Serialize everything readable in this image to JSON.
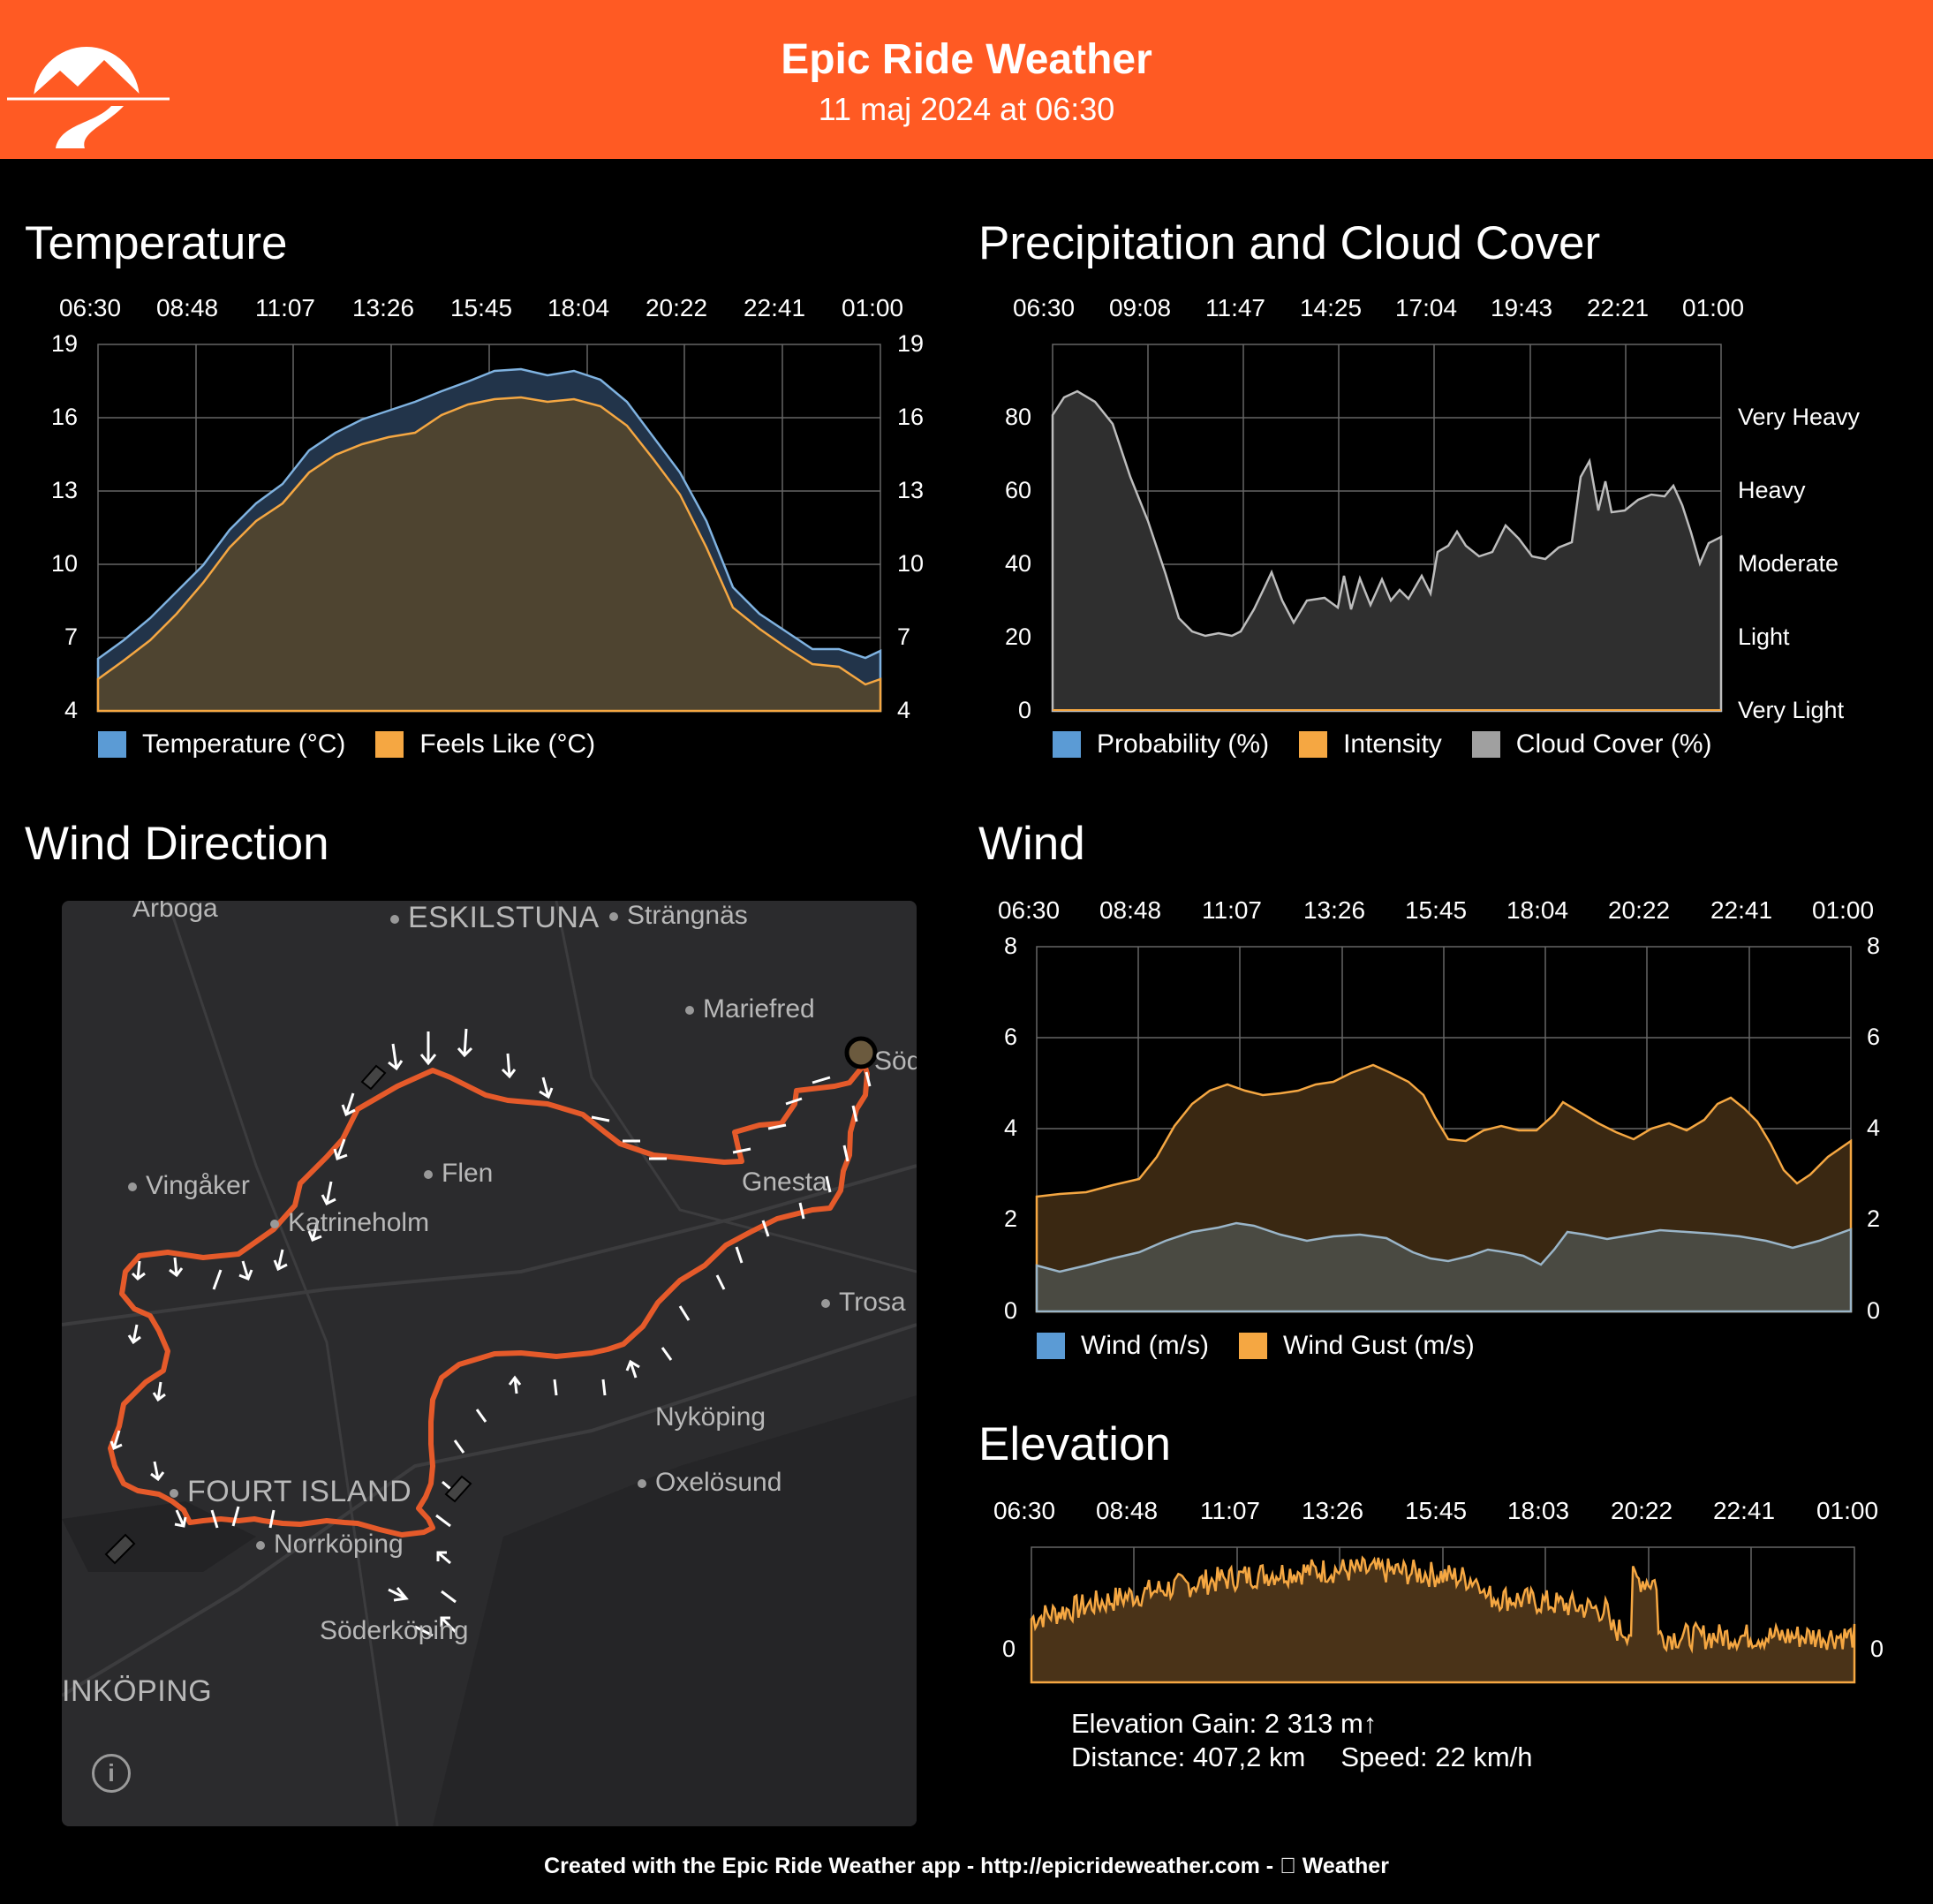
{
  "header": {
    "title": "Epic Ride Weather",
    "subtitle": "11 maj 2024 at 06:30",
    "accent": "#ff5a23"
  },
  "temperature": {
    "section_title": "Temperature",
    "x_ticks": [
      "06:30",
      "08:48",
      "11:07",
      "13:26",
      "15:45",
      "18:04",
      "20:22",
      "22:41",
      "01:00"
    ],
    "y_ticks": [
      "19",
      "16",
      "13",
      "10",
      "7",
      "4"
    ],
    "legend": [
      {
        "label": "Temperature (°C)",
        "color": "#5b9bd5"
      },
      {
        "label": "Feels Like (°C)",
        "color": "#f5a742"
      }
    ]
  },
  "precip": {
    "section_title": "Precipitation and Cloud Cover",
    "x_ticks": [
      "06:30",
      "09:08",
      "11:47",
      "14:25",
      "17:04",
      "19:43",
      "22:21",
      "01:00"
    ],
    "y_ticks": [
      "80",
      "60",
      "40",
      "20",
      "0"
    ],
    "y_right": [
      "Very Heavy",
      "Heavy",
      "Moderate",
      "Light",
      "Very Light"
    ],
    "legend": [
      {
        "label": "Probability (%)",
        "color": "#5b9bd5"
      },
      {
        "label": "Intensity",
        "color": "#f5a742"
      },
      {
        "label": "Cloud Cover (%)",
        "color": "#a0a0a0"
      }
    ]
  },
  "wind_direction": {
    "section_title": "Wind Direction",
    "map_labels": {
      "arboga": "Arboga",
      "eskilstuna": "ESKILSTUNA",
      "strangnas": "Strängnäs",
      "mariefred": "Mariefred",
      "sodertalje": "Söde",
      "vingaker": "Vingåker",
      "flen": "Flen",
      "gnesta": "Gnesta",
      "katrineholm": "Katrineholm",
      "trosa": "Trosa",
      "nykoping": "Nyköping",
      "oxelosund": "Oxelösund",
      "fourt_island": "FOURT ISLAND",
      "norrkoping": "Norrköping",
      "soderkoping": "Söderköping",
      "linkoping": "INKÖPING"
    },
    "info_icon": "i"
  },
  "wind": {
    "section_title": "Wind",
    "x_ticks": [
      "06:30",
      "08:48",
      "11:07",
      "13:26",
      "15:45",
      "18:04",
      "20:22",
      "22:41",
      "01:00"
    ],
    "y_ticks": [
      "8",
      "6",
      "4",
      "2",
      "0"
    ],
    "legend": [
      {
        "label": "Wind (m/s)",
        "color": "#5b9bd5"
      },
      {
        "label": "Wind Gust (m/s)",
        "color": "#f5a742"
      }
    ]
  },
  "elevation": {
    "section_title": "Elevation",
    "x_ticks": [
      "06:30",
      "08:48",
      "11:07",
      "13:26",
      "15:45",
      "18:03",
      "20:22",
      "22:41",
      "01:00"
    ],
    "y_label": "0",
    "gain": "Elevation Gain: 2 313 m↑",
    "distance": "Distance: 407,2 km",
    "speed": "Speed: 22 km/h"
  },
  "footer": "Created with the Epic Ride Weather app - http://epicrideweather.com - \u0000 Weather",
  "chart_data": [
    {
      "type": "area",
      "title": "Temperature",
      "x": [
        "06:30",
        "08:48",
        "11:07",
        "13:26",
        "15:45",
        "18:04",
        "20:22",
        "22:41",
        "01:00"
      ],
      "ylim": [
        4,
        19
      ],
      "series": [
        {
          "name": "Temperature (°C)",
          "values": [
            6.2,
            9.6,
            13.9,
            16.0,
            17.8,
            17.0,
            13.2,
            8.0,
            6.3
          ]
        },
        {
          "name": "Feels Like (°C)",
          "values": [
            5.3,
            8.6,
            13.0,
            15.0,
            16.8,
            16.2,
            12.3,
            7.2,
            5.2
          ]
        }
      ]
    },
    {
      "type": "area",
      "title": "Precipitation and Cloud Cover",
      "x": [
        "06:30",
        "09:08",
        "11:47",
        "14:25",
        "17:04",
        "19:43",
        "22:21",
        "01:00"
      ],
      "ylim": [
        0,
        100
      ],
      "series": [
        {
          "name": "Cloud Cover (%)",
          "values": [
            81,
            70,
            22,
            31,
            32,
            47,
            55,
            47
          ]
        },
        {
          "name": "Probability (%)",
          "values": [
            0,
            0,
            0,
            0,
            0,
            0,
            0,
            0
          ]
        },
        {
          "name": "Intensity",
          "values": [
            0,
            0,
            0,
            0,
            0,
            0,
            0,
            0
          ]
        }
      ]
    },
    {
      "type": "area",
      "title": "Wind",
      "x": [
        "06:30",
        "08:48",
        "11:07",
        "13:26",
        "15:45",
        "18:04",
        "20:22",
        "22:41",
        "01:00"
      ],
      "ylim": [
        0,
        8
      ],
      "series": [
        {
          "name": "Wind (m/s)",
          "values": [
            1.0,
            1.2,
            1.8,
            1.6,
            1.1,
            1.7,
            1.6,
            1.6,
            1.8
          ]
        },
        {
          "name": "Wind Gust (m/s)",
          "values": [
            2.5,
            2.8,
            4.9,
            4.8,
            5.3,
            3.9,
            3.9,
            4.3,
            3.7
          ]
        }
      ]
    },
    {
      "type": "area",
      "title": "Elevation",
      "x": [
        "06:30",
        "08:48",
        "11:07",
        "13:26",
        "15:45",
        "18:03",
        "20:22",
        "22:41",
        "01:00"
      ],
      "series": [
        {
          "name": "",
          "values": [
            40,
            30,
            35,
            42,
            50,
            30,
            20,
            35,
            5
          ]
        }
      ]
    }
  ]
}
